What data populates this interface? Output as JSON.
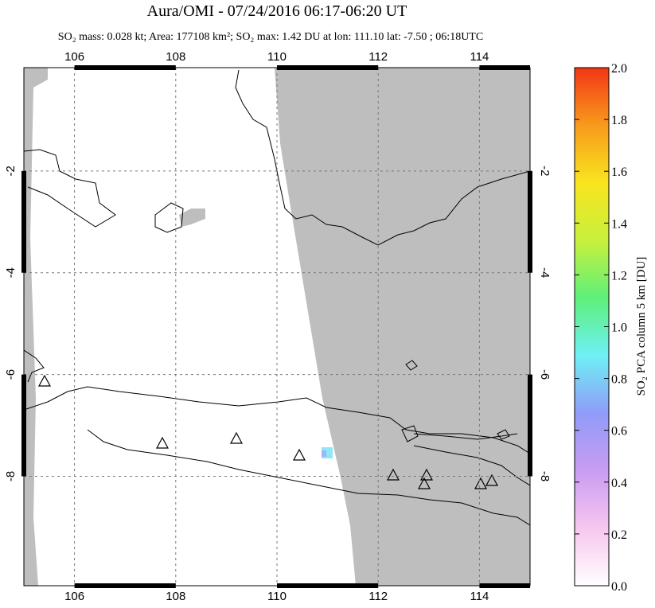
{
  "chart_data": {
    "type": "map",
    "title": "Aura/OMI - 07/24/2016 06:17-06:20 UT",
    "subtitle": "SO₂ mass: 0.028 kt; Area: 177108 km²; SO₂ max: 1.42 DU at lon: 111.10 lat: -7.50 ; 06:18UTC",
    "xlim": [
      105,
      115
    ],
    "ylim": [
      -10.15,
      0.03
    ],
    "xticks": [
      106,
      108,
      110,
      112,
      114
    ],
    "yticks": [
      -2,
      -4,
      -6,
      -8
    ],
    "grid": true,
    "colorbar": {
      "label": "SO₂ PCA column 5 km [DU]",
      "lim": [
        0,
        2
      ],
      "ticks": [
        {
          "value": 0,
          "label": "0.0"
        },
        0.2,
        0.4,
        0.6,
        0.8,
        {
          "value": 1,
          "label": "1.0"
        },
        1.2,
        1.4,
        1.6,
        1.8,
        {
          "value": 2,
          "label": "2.0"
        }
      ],
      "colors": [
        "#ffffff",
        "#f7c6ef",
        "#c99cf2",
        "#8f9cf8",
        "#6ef0f5",
        "#5ef07a",
        "#c8f03c",
        "#f8e51e",
        "#f89a1c",
        "#f23616"
      ]
    }
  }
}
